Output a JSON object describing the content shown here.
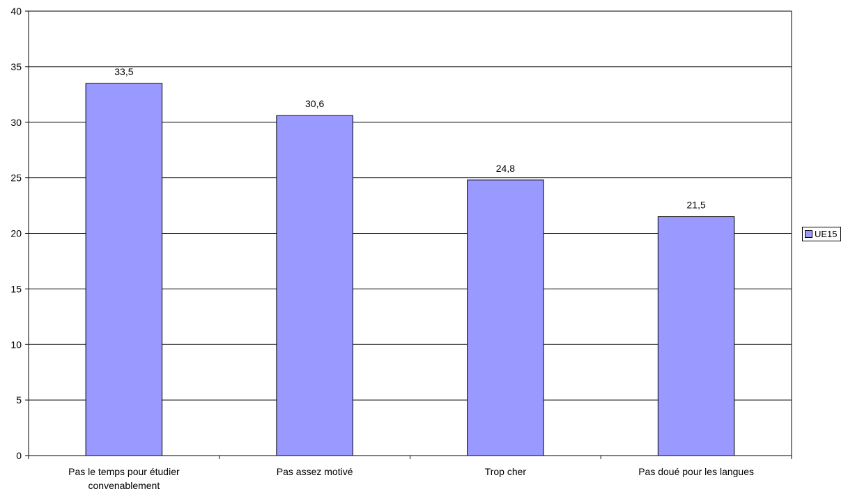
{
  "chart_data": {
    "type": "bar",
    "categories": [
      [
        "Pas le temps pour étudier",
        "convenablement"
      ],
      [
        "Pas assez motivé"
      ],
      [
        "Trop cher"
      ],
      [
        "Pas doué pour les langues"
      ]
    ],
    "series": [
      {
        "name": "UE15",
        "values": [
          33.5,
          30.6,
          24.8,
          21.5
        ],
        "color": "#9999FF"
      }
    ],
    "data_labels": [
      "33,5",
      "30,6",
      "24,8",
      "21,5"
    ],
    "ylim": [
      0,
      40
    ],
    "yticks": [
      0,
      5,
      10,
      15,
      20,
      25,
      30,
      35,
      40
    ],
    "grid": true,
    "legend_position": "right",
    "title": "",
    "xlabel": "",
    "ylabel": ""
  }
}
